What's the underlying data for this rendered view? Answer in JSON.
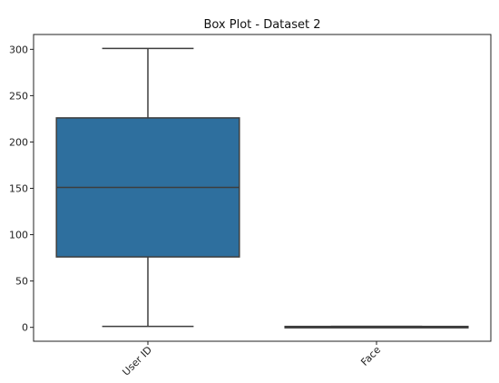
{
  "chart_data": {
    "type": "box",
    "title": "Box Plot - Dataset 2",
    "xlabel": "",
    "ylabel": "",
    "categories": [
      "User ID",
      "Face"
    ],
    "boxes": [
      {
        "category": "User ID",
        "min": 1,
        "q1": 76,
        "median": 151,
        "q3": 226,
        "max": 301
      },
      {
        "category": "Face",
        "min": 0,
        "q1": 0,
        "median": 0,
        "q3": 1,
        "max": 1
      }
    ],
    "y_ticks": [
      0,
      50,
      100,
      150,
      200,
      250,
      300
    ],
    "ylim": [
      -15,
      316
    ],
    "grid": false,
    "box_color": "#2e6f9e",
    "edge_color": "#3d3d3d"
  }
}
